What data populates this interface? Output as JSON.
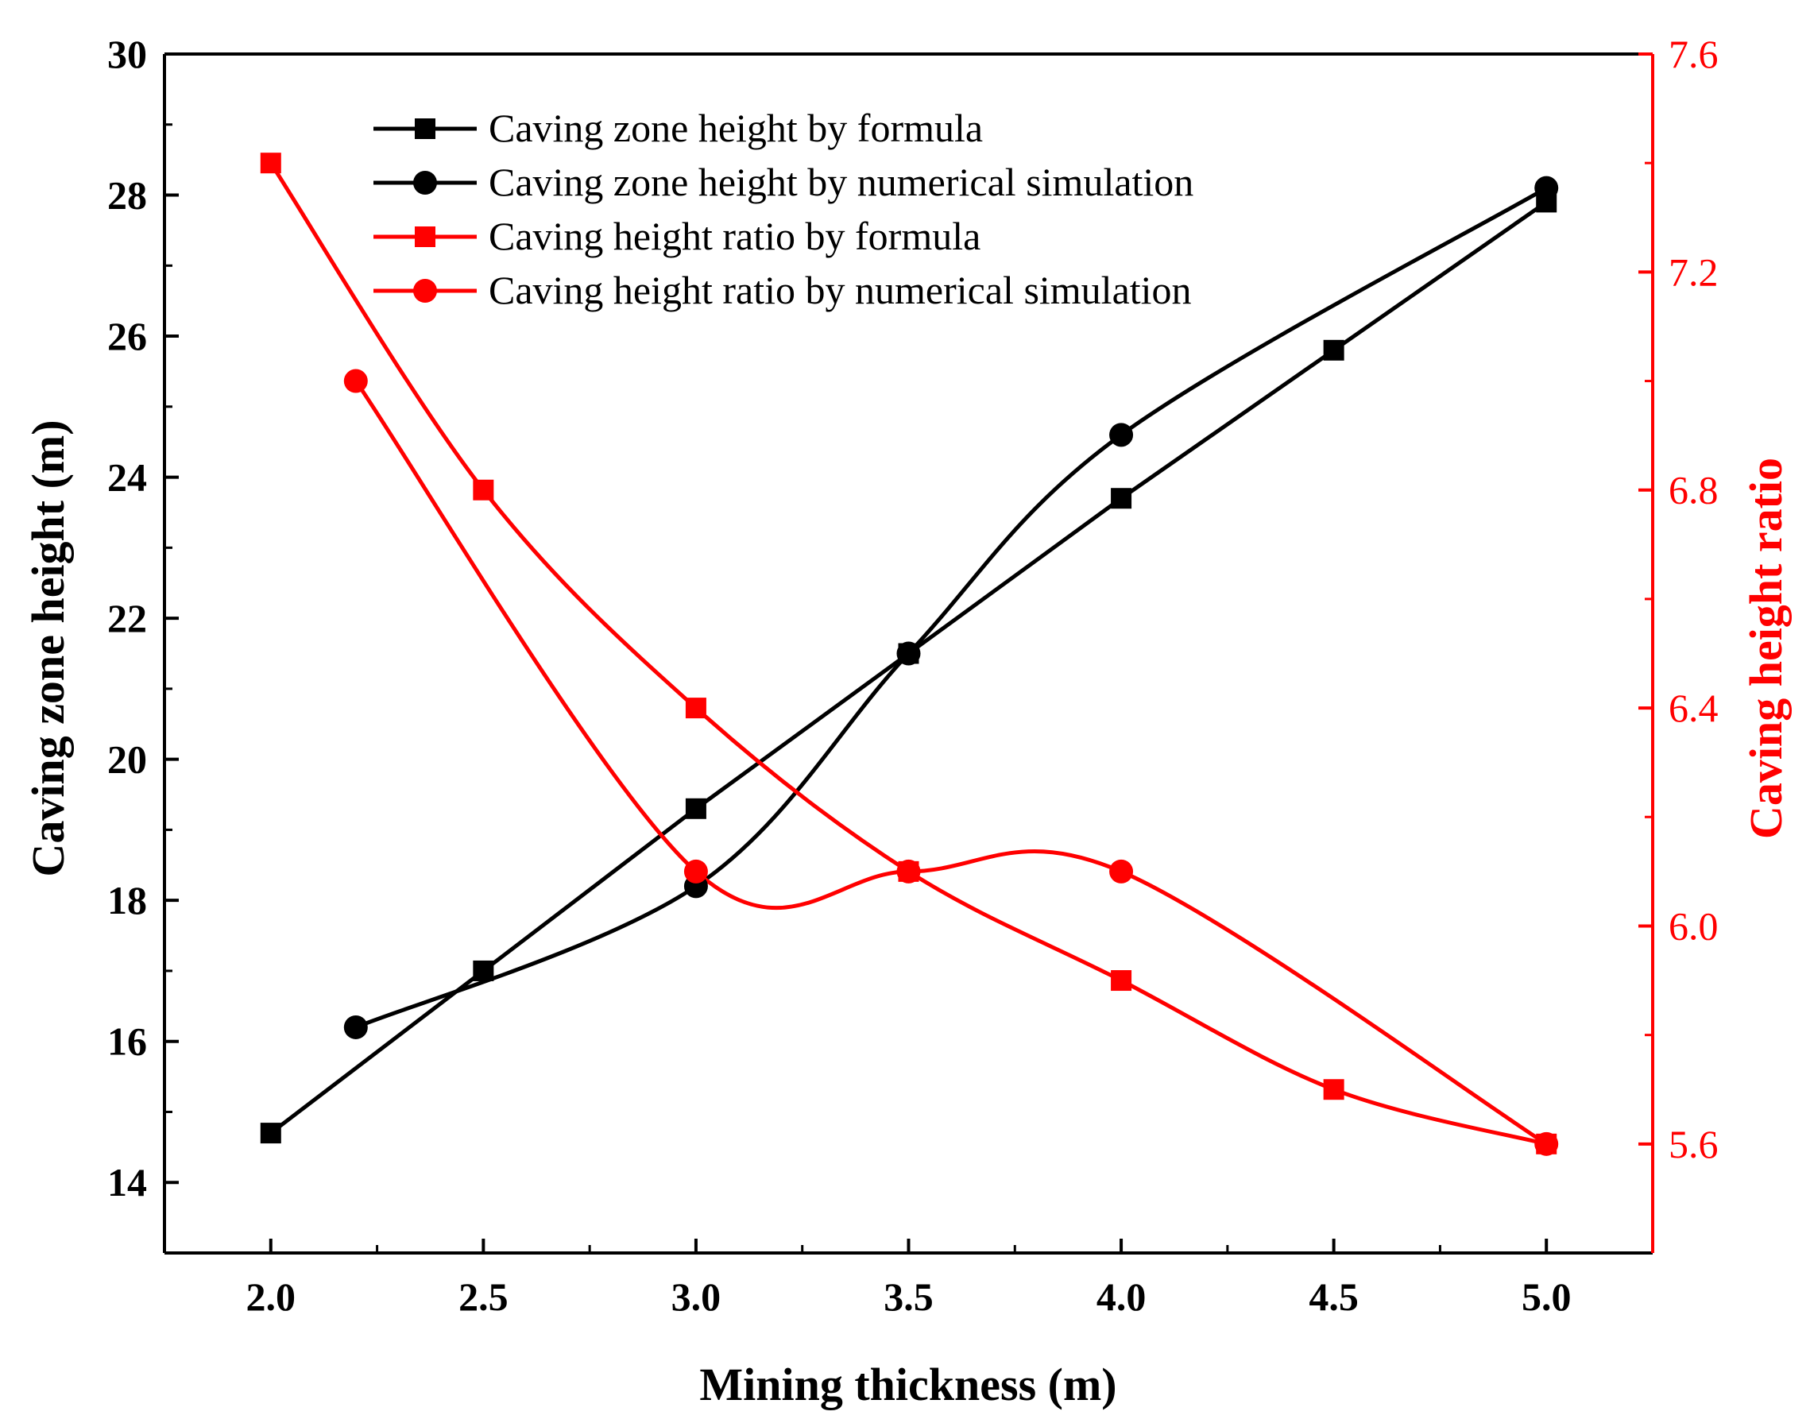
{
  "chart_data": {
    "type": "line",
    "title": "",
    "xlabel": "Mining thickness (m)",
    "ylabel_left": "Caving zone height (m)",
    "ylabel_right": "Caving height ratio",
    "xlim": [
      1.75,
      5.25
    ],
    "ylim_left": [
      13,
      30
    ],
    "ylim_right": [
      5.4,
      7.6
    ],
    "x_ticks": [
      2.0,
      2.5,
      3.0,
      3.5,
      4.0,
      4.5,
      5.0
    ],
    "x_tick_labels": [
      "2.0",
      "2.5",
      "3.0",
      "3.5",
      "4.0",
      "4.5",
      "5.0"
    ],
    "y_left_ticks": [
      14,
      16,
      18,
      20,
      22,
      24,
      26,
      28,
      30
    ],
    "y_left_tick_labels": [
      "14",
      "16",
      "18",
      "20",
      "22",
      "24",
      "26",
      "28",
      "30"
    ],
    "y_right_ticks": [
      5.6,
      6.0,
      6.4,
      6.8,
      7.2,
      7.6
    ],
    "y_right_tick_labels": [
      "5.6",
      "6.0",
      "6.4",
      "6.8",
      "7.2",
      "7.6"
    ],
    "grid": false,
    "legend_position": "top-left",
    "series": [
      {
        "name": "Caving zone height by formula",
        "axis": "left",
        "color": "#000000",
        "marker": "square",
        "smooth": false,
        "x": [
          2.0,
          2.5,
          3.0,
          3.5,
          4.0,
          4.5,
          5.0
        ],
        "values": [
          14.7,
          17.0,
          19.3,
          21.5,
          23.7,
          25.8,
          27.9
        ]
      },
      {
        "name": "Caving zone height by numerical simulation",
        "axis": "left",
        "color": "#000000",
        "marker": "circle",
        "smooth": true,
        "x": [
          2.2,
          3.0,
          3.5,
          4.0,
          5.0
        ],
        "values": [
          16.2,
          18.2,
          21.5,
          24.6,
          28.1
        ]
      },
      {
        "name": "Caving height ratio by formula",
        "axis": "right",
        "color": "#ff0000",
        "marker": "square",
        "smooth": true,
        "x": [
          2.0,
          2.5,
          3.0,
          3.5,
          4.0,
          4.5,
          5.0
        ],
        "values": [
          7.4,
          6.8,
          6.4,
          6.1,
          5.9,
          5.7,
          5.6
        ]
      },
      {
        "name": "Caving height ratio by numerical simulation",
        "axis": "right",
        "color": "#ff0000",
        "marker": "circle",
        "smooth": true,
        "x": [
          2.2,
          3.0,
          3.5,
          4.0,
          5.0
        ],
        "values": [
          7.0,
          6.1,
          6.1,
          6.1,
          5.6
        ]
      }
    ]
  }
}
